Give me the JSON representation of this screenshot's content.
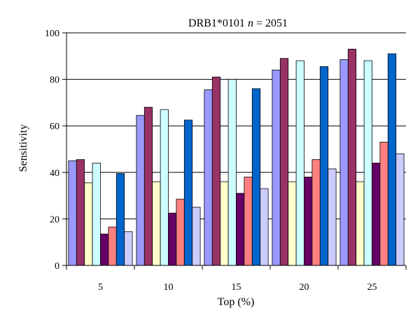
{
  "chart_data": {
    "type": "bar",
    "title": "DRB1*0101",
    "title_n_label": "n",
    "title_n_value": "= 2051",
    "xlabel": "Top (%)",
    "ylabel": "Sensitivity",
    "categories": [
      "5",
      "10",
      "15",
      "20",
      "25"
    ],
    "ylim": [
      0,
      100
    ],
    "yticks": [
      0,
      20,
      40,
      60,
      80,
      100
    ],
    "grid": true,
    "legend": "none",
    "series": [
      {
        "color": "#9999ff",
        "values": [
          45,
          64.5,
          75.5,
          84,
          88.5
        ]
      },
      {
        "color": "#993366",
        "values": [
          45.5,
          68,
          81,
          89,
          93
        ]
      },
      {
        "color": "#ffffcc",
        "values": [
          35.5,
          36,
          36,
          36,
          36
        ]
      },
      {
        "color": "#ccffff",
        "values": [
          44,
          67,
          80,
          88,
          88
        ]
      },
      {
        "color": "#660066",
        "values": [
          13.5,
          22.5,
          31,
          38,
          44
        ]
      },
      {
        "color": "#ff8080",
        "values": [
          16.5,
          28.5,
          38,
          45.5,
          53
        ]
      },
      {
        "color": "#0066cc",
        "values": [
          39.5,
          62.5,
          76,
          85.5,
          91
        ]
      },
      {
        "color": "#ccccff",
        "values": [
          14.5,
          25,
          33,
          41.5,
          48
        ]
      }
    ]
  }
}
